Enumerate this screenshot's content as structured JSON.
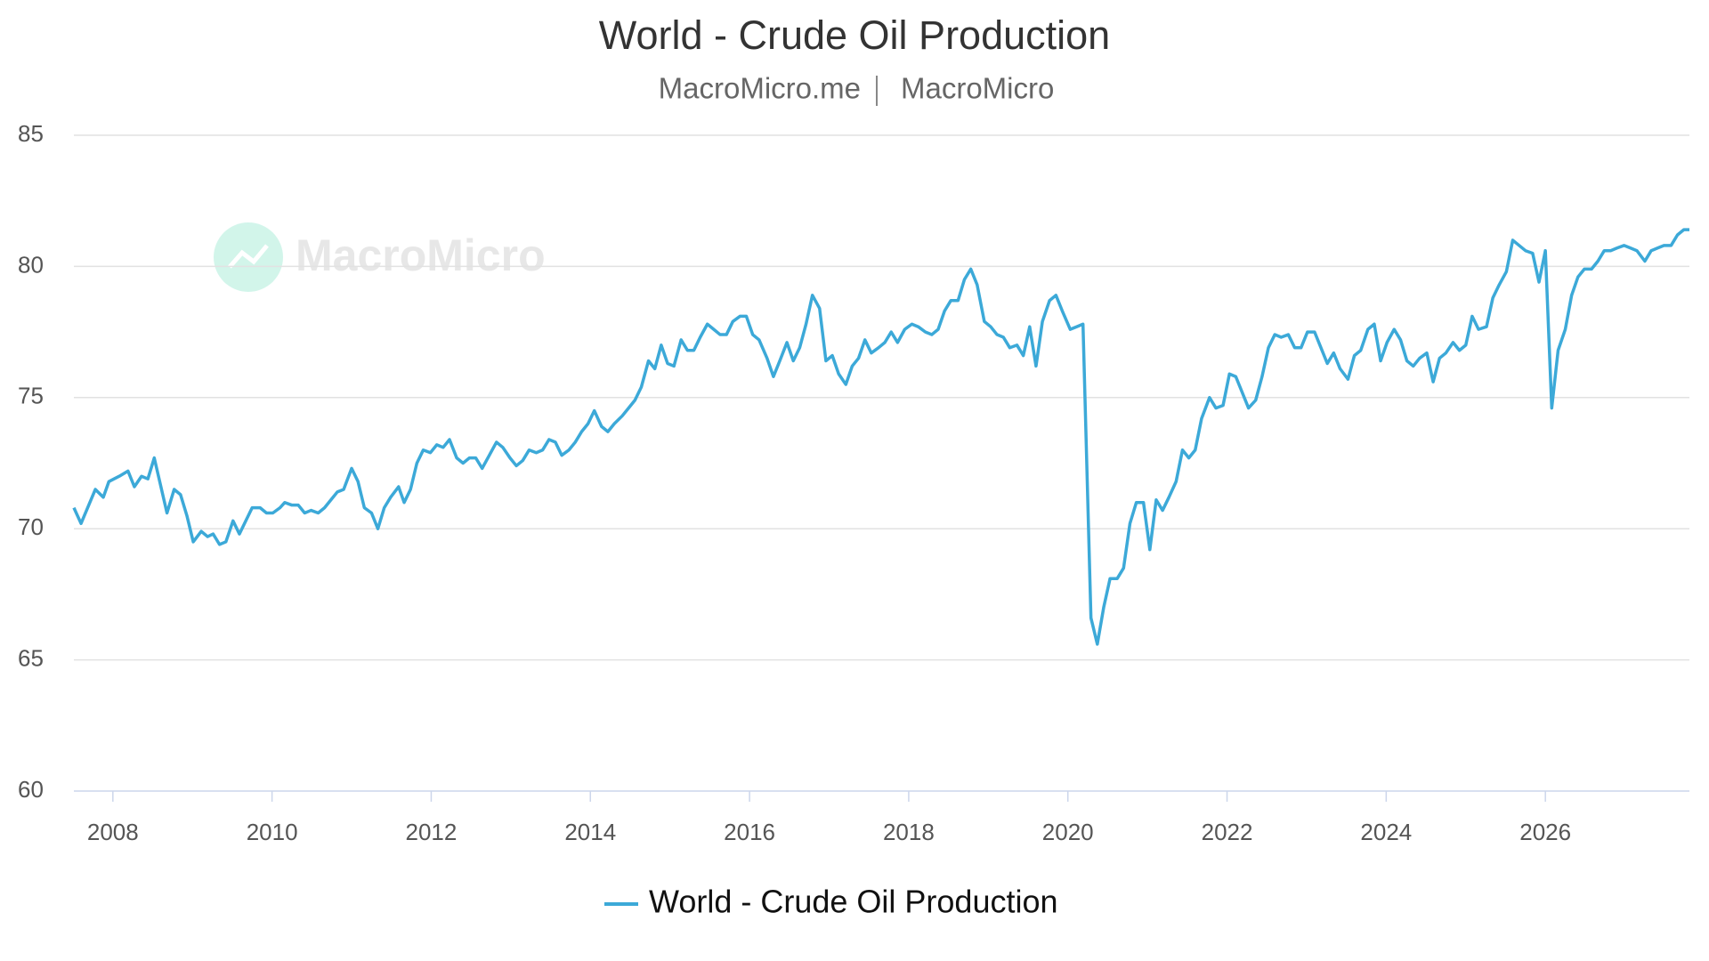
{
  "chart_data": {
    "type": "line",
    "title": "World - Crude Oil Production",
    "subtitle": [
      "MacroMicro.me",
      "MacroMicro"
    ],
    "watermark": "MacroMicro",
    "x": [
      2007.51,
      2007.6,
      2007.78,
      2007.88,
      2007.95,
      2008.08,
      2008.19,
      2008.27,
      2008.36,
      2008.44,
      2008.52,
      2008.68,
      2008.77,
      2008.85,
      2008.93,
      2009.01,
      2009.11,
      2009.19,
      2009.26,
      2009.34,
      2009.42,
      2009.51,
      2009.59,
      2009.67,
      2009.75,
      2009.85,
      2009.93,
      2010.01,
      2010.1,
      2010.16,
      2010.25,
      2010.33,
      2010.41,
      2010.49,
      2010.58,
      2010.66,
      2010.74,
      2010.82,
      2010.9,
      2011.0,
      2011.08,
      2011.16,
      2011.25,
      2011.33,
      2011.41,
      2011.49,
      2011.59,
      2011.66,
      2011.74,
      2011.82,
      2011.9,
      2011.99,
      2012.07,
      2012.15,
      2012.23,
      2012.32,
      2012.4,
      2012.48,
      2012.56,
      2012.64,
      2012.73,
      2012.82,
      2012.9,
      2012.99,
      2013.07,
      2013.15,
      2013.23,
      2013.32,
      2013.4,
      2013.48,
      2013.56,
      2013.64,
      2013.73,
      2013.81,
      2013.89,
      2013.97,
      2014.05,
      2014.14,
      2014.22,
      2014.3,
      2014.4,
      2014.48,
      2014.56,
      2014.64,
      2014.73,
      2014.81,
      2014.89,
      2014.97,
      2015.05,
      2015.14,
      2015.22,
      2015.3,
      2015.38,
      2015.47,
      2015.55,
      2015.63,
      2015.71,
      2015.79,
      2015.88,
      2015.96,
      2016.04,
      2016.12,
      2016.22,
      2016.3,
      2016.38,
      2016.47,
      2016.55,
      2016.63,
      2016.71,
      2016.79,
      2016.88,
      2016.96,
      2017.04,
      2017.12,
      2017.21,
      2017.29,
      2017.37,
      2017.45,
      2017.53,
      2017.62,
      2017.7,
      2017.78,
      2017.86,
      2017.95,
      2018.04,
      2018.12,
      2018.21,
      2018.29,
      2018.37,
      2018.45,
      2018.53,
      2018.62,
      2018.7,
      2018.78,
      2018.86,
      2018.95,
      2019.03,
      2019.11,
      2019.19,
      2019.27,
      2019.36,
      2019.44,
      2019.52,
      2019.6,
      2019.68,
      2019.77,
      2019.85,
      2019.93,
      2020.03,
      2020.11,
      2020.19,
      2020.29,
      2020.37,
      2020.45,
      2020.53,
      2020.62,
      2020.7,
      2020.78,
      2020.86,
      2020.95,
      2021.03,
      2021.11,
      2021.19,
      2021.27,
      2021.36,
      2021.44,
      2021.52,
      2021.6,
      2021.68,
      2021.78,
      2021.86,
      2021.95,
      2022.03,
      2022.11,
      2022.19,
      2022.27,
      2022.36,
      2022.44,
      2022.52,
      2022.6,
      2022.68,
      2022.77,
      2022.85,
      2022.93,
      2023.01,
      2023.1,
      2023.18,
      2023.26,
      2023.34,
      2023.42,
      2023.52,
      2023.6,
      2023.68,
      2023.77,
      2023.85,
      2023.93,
      2024.01,
      2024.1,
      2024.18,
      2024.26,
      2024.34,
      2024.42,
      2024.51,
      2024.59,
      2024.67,
      2024.75,
      2024.84,
      2024.92,
      2025.0,
      2025.08,
      2025.16,
      2025.26,
      2025.34,
      2025.42,
      2025.51,
      2025.59,
      2025.67,
      2025.75,
      2025.84,
      2025.92,
      2026.0,
      2026.08,
      2026.16,
      2026.25,
      2026.33,
      2026.41,
      2026.49,
      2026.58,
      2026.66,
      2026.74,
      2026.82,
      2026.9,
      2026.99,
      2027.07,
      2027.15,
      2027.25,
      2027.33,
      2027.41,
      2027.49,
      2027.58,
      2027.66,
      2027.74,
      2027.81
    ],
    "series": [
      {
        "name": "World - Crude Oil Production",
        "color": "#3ca9d8",
        "values": [
          70.8,
          70.2,
          71.5,
          71.2,
          71.8,
          72.0,
          72.2,
          71.6,
          72.0,
          71.9,
          72.7,
          70.6,
          71.5,
          71.3,
          70.5,
          69.5,
          69.9,
          69.7,
          69.8,
          69.4,
          69.5,
          70.3,
          69.8,
          70.3,
          70.8,
          70.8,
          70.6,
          70.6,
          70.8,
          71.0,
          70.9,
          70.9,
          70.6,
          70.7,
          70.6,
          70.8,
          71.1,
          71.4,
          71.5,
          72.3,
          71.8,
          70.8,
          70.6,
          70.0,
          70.8,
          71.2,
          71.6,
          71.0,
          71.5,
          72.5,
          73.0,
          72.9,
          73.2,
          73.1,
          73.4,
          72.7,
          72.5,
          72.7,
          72.7,
          72.3,
          72.8,
          73.3,
          73.1,
          72.7,
          72.4,
          72.6,
          73.0,
          72.9,
          73.0,
          73.4,
          73.3,
          72.8,
          73.0,
          73.3,
          73.7,
          74.0,
          74.5,
          73.9,
          73.7,
          74.0,
          74.3,
          74.6,
          74.9,
          75.4,
          76.4,
          76.1,
          77.0,
          76.3,
          76.2,
          77.2,
          76.8,
          76.8,
          77.3,
          77.8,
          77.6,
          77.4,
          77.4,
          77.9,
          78.1,
          78.1,
          77.4,
          77.2,
          76.5,
          75.8,
          76.4,
          77.1,
          76.4,
          76.9,
          77.8,
          78.9,
          78.4,
          76.4,
          76.6,
          75.9,
          75.5,
          76.2,
          76.5,
          77.2,
          76.7,
          76.9,
          77.1,
          77.5,
          77.1,
          77.6,
          77.8,
          77.7,
          77.5,
          77.4,
          77.6,
          78.3,
          78.7,
          78.7,
          79.5,
          79.9,
          79.3,
          77.9,
          77.7,
          77.4,
          77.3,
          76.9,
          77.0,
          76.6,
          77.7,
          76.2,
          77.9,
          78.7,
          78.9,
          78.3,
          77.6,
          77.7,
          77.8,
          66.6,
          65.6,
          67.0,
          68.1,
          68.1,
          68.5,
          70.2,
          71.0,
          71.0,
          69.2,
          71.1,
          70.7,
          71.2,
          71.8,
          73.0,
          72.7,
          73.0,
          74.2,
          75.0,
          74.6,
          74.7,
          75.9,
          75.8,
          75.2,
          74.6,
          74.9,
          75.8,
          76.9,
          77.4,
          77.3,
          77.4,
          76.9,
          76.9,
          77.5,
          77.5,
          76.9,
          76.3,
          76.7,
          76.1,
          75.7,
          76.6,
          76.8,
          77.6,
          77.8,
          76.4,
          77.1,
          77.6,
          77.2,
          76.4,
          76.2,
          76.5,
          76.7,
          75.6,
          76.5,
          76.7,
          77.1,
          76.8,
          77.0,
          78.1,
          77.6,
          77.7,
          78.8,
          79.3,
          79.8,
          81.0,
          80.8,
          80.6,
          80.5,
          79.4,
          80.6,
          74.6,
          76.8,
          77.6,
          78.9,
          79.6,
          79.9,
          79.9,
          80.2,
          80.6,
          80.6,
          80.7,
          80.8,
          80.7,
          80.6,
          80.2,
          80.6,
          80.7,
          80.8,
          80.8,
          81.2,
          81.4,
          81.4
        ]
      }
    ],
    "xlim": [
      2007.51,
      2027.81
    ],
    "xticks": [
      2008,
      2010,
      2012,
      2014,
      2016,
      2018,
      2020,
      2022,
      2024,
      2026
    ],
    "ylim": [
      60,
      85
    ],
    "yticks": [
      60,
      65,
      70,
      75,
      80,
      85
    ],
    "grid": true
  }
}
